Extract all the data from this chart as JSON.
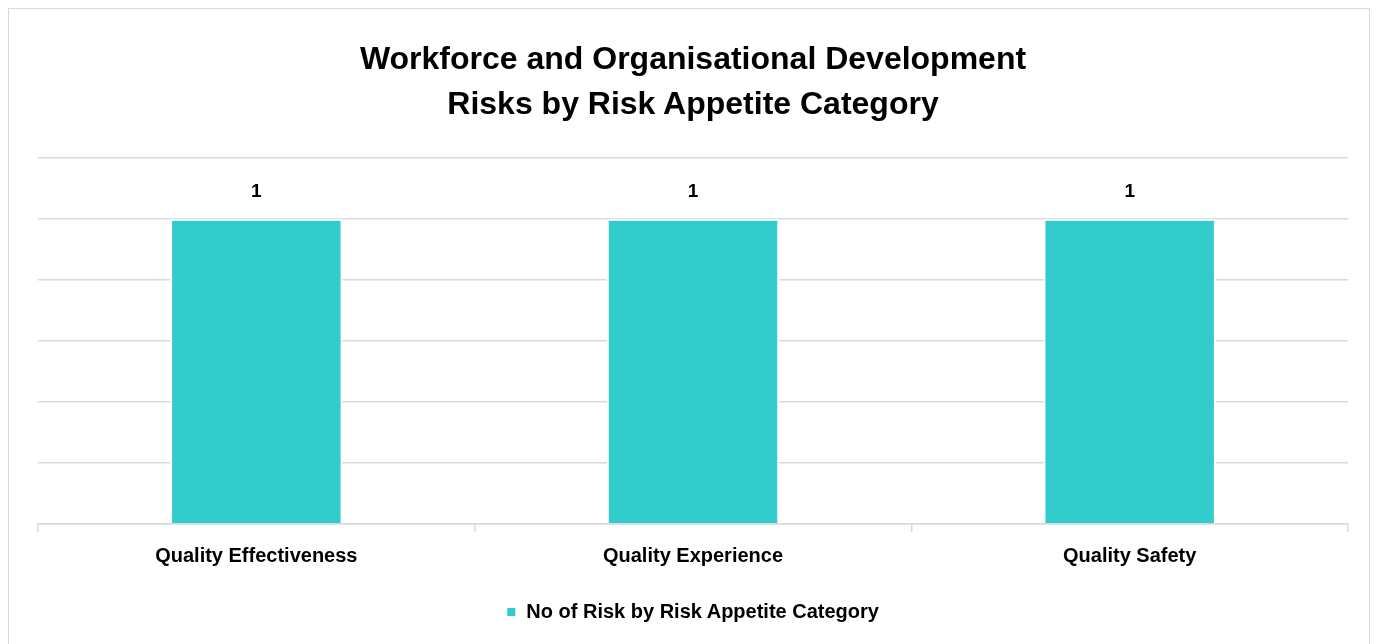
{
  "chart_data": {
    "type": "bar",
    "title": "Workforce and Organisational Development\nRisks by Risk Appetite Category",
    "categories": [
      "Quality Effectiveness",
      "Quality Experience",
      "Quality Safety"
    ],
    "series": [
      {
        "name": "No of Risk by Risk Appetite Category",
        "color": "#33cccc",
        "values": [
          1,
          1,
          1
        ]
      }
    ],
    "ylim": [
      0,
      1.2
    ],
    "grid": "y",
    "legend": "bottom",
    "tick_labels": "x",
    "data_labels": true
  }
}
